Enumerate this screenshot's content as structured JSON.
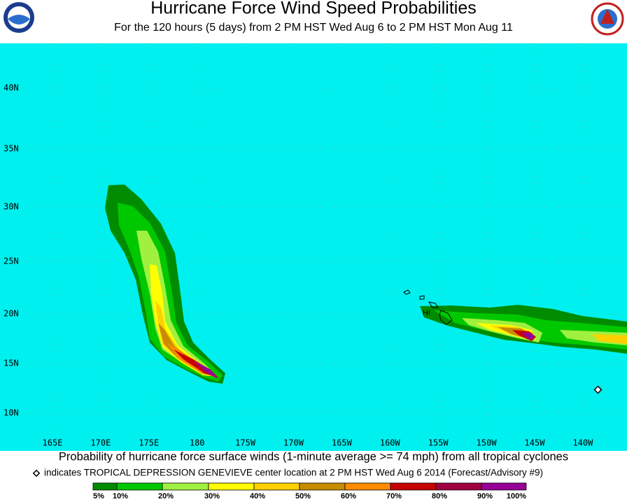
{
  "header": {
    "title": "Hurricane Force Wind Speed Probabilities",
    "subtitle": "For the 120 hours (5 days) from 2 PM HST Wed Aug 6 to 2 PM HST Mon Aug 11"
  },
  "map": {
    "lat_labels": [
      "40N",
      "35N",
      "30N",
      "25N",
      "20N",
      "15N",
      "10N"
    ],
    "lon_labels": [
      "165E",
      "170E",
      "175E",
      "180",
      "175W",
      "170W",
      "165W",
      "160W",
      "155W",
      "150W",
      "145W",
      "140W"
    ],
    "region_label": "HI"
  },
  "caption": "Probability of hurricane force surface winds (1-minute average >= 74 mph) from all tropical cyclones",
  "footnote": "indicates TROPICAL DEPRESSION GENEVIEVE center location at 2 PM HST Wed Aug 6 2014 (Forecast/Advisory #9)",
  "legend": {
    "labels": [
      "5%",
      "10%",
      "20%",
      "30%",
      "40%",
      "50%",
      "60%",
      "70%",
      "80%",
      "90%",
      "100%"
    ],
    "colors": [
      "#008c00",
      "#00c800",
      "#a0f040",
      "#ffff00",
      "#ffd000",
      "#c88c00",
      "#ff8c00",
      "#c80000",
      "#a00040",
      "#960096"
    ]
  }
}
